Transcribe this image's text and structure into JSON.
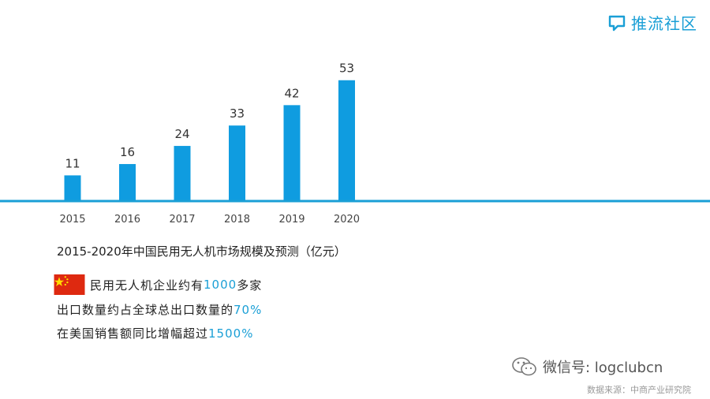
{
  "brand": {
    "name": "推流社区",
    "color": "#1a9fd6"
  },
  "chart_data": {
    "type": "bar",
    "title": "2015-2020年中国民用无人机市场规模及预测（亿元）",
    "categories": [
      "2015",
      "2016",
      "2017",
      "2018",
      "2019",
      "2020"
    ],
    "values": [
      11,
      16,
      24,
      33,
      42,
      53
    ],
    "ylim": [
      0,
      55
    ],
    "grid": false,
    "bar_color": "#0f9ce0",
    "baseline_color": "#1a9fd6"
  },
  "facts": [
    {
      "prefix": "民用无人机企业约有",
      "num": "1000",
      "suffix": "多家"
    },
    {
      "prefix": "出口数量约占全球总出口数量的",
      "num": "70%",
      "suffix": ""
    },
    {
      "prefix": "在美国销售额同比增幅超过",
      "num": "1500%",
      "suffix": ""
    }
  ],
  "flag_icon": "china-flag-icon",
  "wechat": {
    "label": "微信号: logclubcn",
    "icon": "wechat-icon"
  },
  "source": "数据来源：中商产业研究院"
}
